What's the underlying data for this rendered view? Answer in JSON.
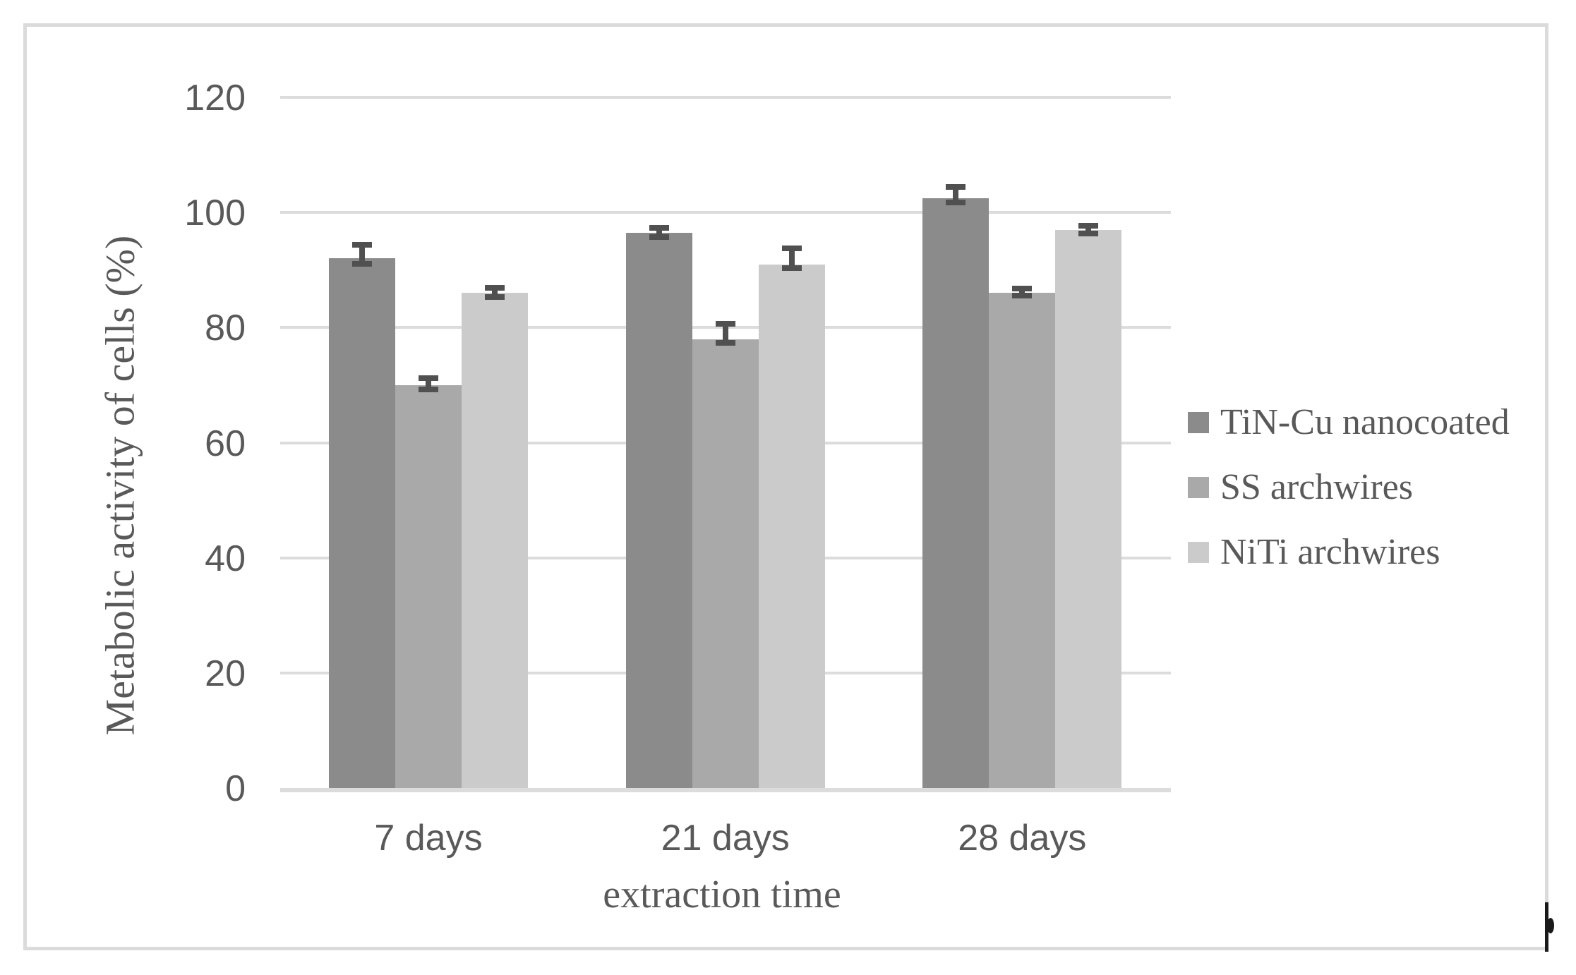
{
  "chart_data": {
    "type": "bar",
    "title": "",
    "xlabel": "extraction time",
    "ylabel": "Metabolic activity of cells (%)",
    "categories": [
      "7 days",
      "21 days",
      "28 days"
    ],
    "series": [
      {
        "name": "TiN-Cu nanocoated",
        "color": "#8b8b8b",
        "values": [
          92,
          96.5,
          102.5
        ],
        "err_up": [
          2.9,
          1.3,
          2.4
        ],
        "err_down": [
          1.4,
          1.2,
          1.2
        ]
      },
      {
        "name": "SS archwires",
        "color": "#a9a9a9",
        "values": [
          70,
          78,
          86
        ],
        "err_up": [
          1.7,
          3.1,
          1.3
        ],
        "err_down": [
          1.2,
          1.2,
          0.9
        ]
      },
      {
        "name": "NiTi archwires",
        "color": "#cbcbcb",
        "values": [
          86,
          91,
          97
        ],
        "err_up": [
          1.4,
          3.3,
          1.2
        ],
        "err_down": [
          1.2,
          1.1,
          1.1
        ]
      }
    ],
    "ylim": [
      0,
      120
    ],
    "yticks": [
      0,
      20,
      40,
      60,
      80,
      100,
      120
    ],
    "grid": true,
    "legend_position": "right",
    "gridline_color": "#dcdcdc",
    "error_bar_color": "#505050",
    "text_color": "#595959"
  }
}
